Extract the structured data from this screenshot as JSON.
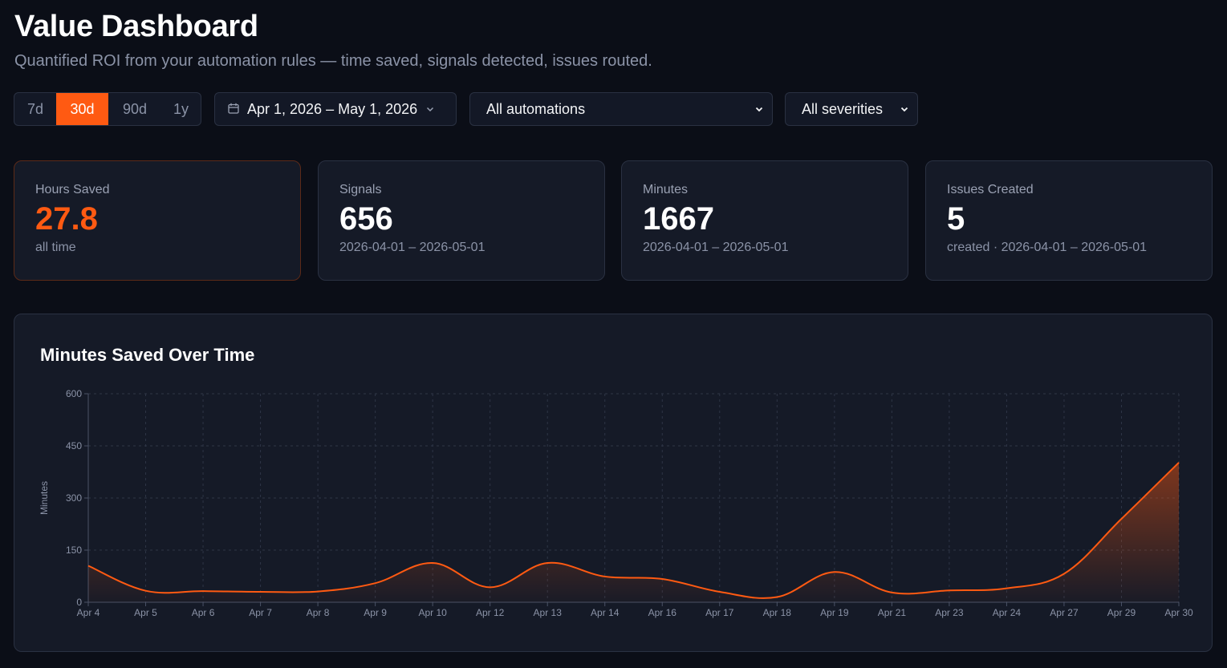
{
  "page": {
    "title": "Value Dashboard",
    "subtitle": "Quantified ROI from your automation rules — time saved, signals detected, issues routed."
  },
  "filters": {
    "ranges": [
      {
        "label": "7d",
        "active": false
      },
      {
        "label": "30d",
        "active": true
      },
      {
        "label": "90d",
        "active": false
      },
      {
        "label": "1y",
        "active": false
      }
    ],
    "date_range": "Apr 1, 2026 – May 1, 2026",
    "automation_select": "All automations",
    "severity_select": "All severities"
  },
  "cards": [
    {
      "label": "Hours Saved",
      "value": "27.8",
      "sub": "all time"
    },
    {
      "label": "Signals",
      "value": "656",
      "sub": "2026-04-01 – 2026-05-01"
    },
    {
      "label": "Minutes",
      "value": "1667",
      "sub": "2026-04-01 – 2026-05-01"
    },
    {
      "label": "Issues Created",
      "value": "5",
      "sub": "created · 2026-04-01 – 2026-05-01"
    }
  ],
  "colors": {
    "accent": "#ff5a12",
    "background": "#0b0e17",
    "card": "#151a27",
    "grid": "#2e3546"
  },
  "chart_data": {
    "type": "area",
    "title": "Minutes Saved Over Time",
    "xlabel": "",
    "ylabel": "Minutes",
    "ylim": [
      0,
      600
    ],
    "yticks": [
      0,
      150,
      300,
      450,
      600
    ],
    "grid": true,
    "categories": [
      "Apr 4",
      "Apr 5",
      "Apr 6",
      "Apr 7",
      "Apr 8",
      "Apr 9",
      "Apr 10",
      "Apr 12",
      "Apr 13",
      "Apr 14",
      "Apr 16",
      "Apr 17",
      "Apr 18",
      "Apr 19",
      "Apr 21",
      "Apr 23",
      "Apr 24",
      "Apr 27",
      "Apr 29",
      "Apr 30"
    ],
    "values": [
      105,
      33,
      32,
      30,
      31,
      55,
      113,
      43,
      113,
      74,
      67,
      30,
      15,
      87,
      28,
      34,
      40,
      82,
      240,
      402
    ]
  }
}
